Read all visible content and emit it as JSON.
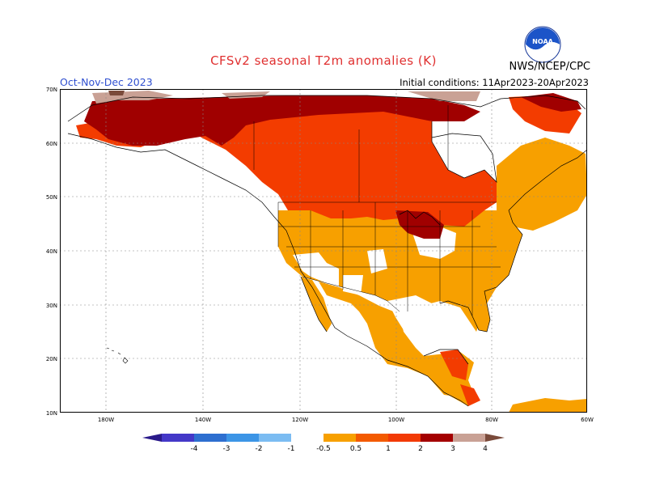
{
  "title": "CFSv2 seasonal T2m anomalies (K)",
  "season": "Oct-Nov-Dec 2023",
  "agency": "NWS/NCEP/CPC",
  "initial_conditions": "Initial conditions: 11Apr2023-20Apr2023",
  "logo_text": "NOAA",
  "lat_labels": [
    "70N",
    "60N",
    "50N",
    "40N",
    "30N",
    "20N",
    "10N"
  ],
  "lon_labels": [
    "180W",
    "140W",
    "120W",
    "100W",
    "80W",
    "60W"
  ],
  "colorbar": {
    "labels": [
      "-4",
      "-3",
      "-2",
      "-1",
      "-0.5",
      "0.5",
      "1",
      "2",
      "3",
      "4"
    ],
    "colors": [
      "#2a1a8a",
      "#4438c8",
      "#2e6fd0",
      "#3c95e6",
      "#7bbcf2",
      "#ffffff",
      "#f7a000",
      "#f35a00",
      "#f23a05",
      "#a40000",
      "#c9a195",
      "#7a4a3a"
    ]
  },
  "legend_anomaly_colors": {
    "0.5-1": "#f7a000",
    "1-2": "#f33c00",
    "2-3": "#a00000",
    "3-4": "#c9a195"
  }
}
